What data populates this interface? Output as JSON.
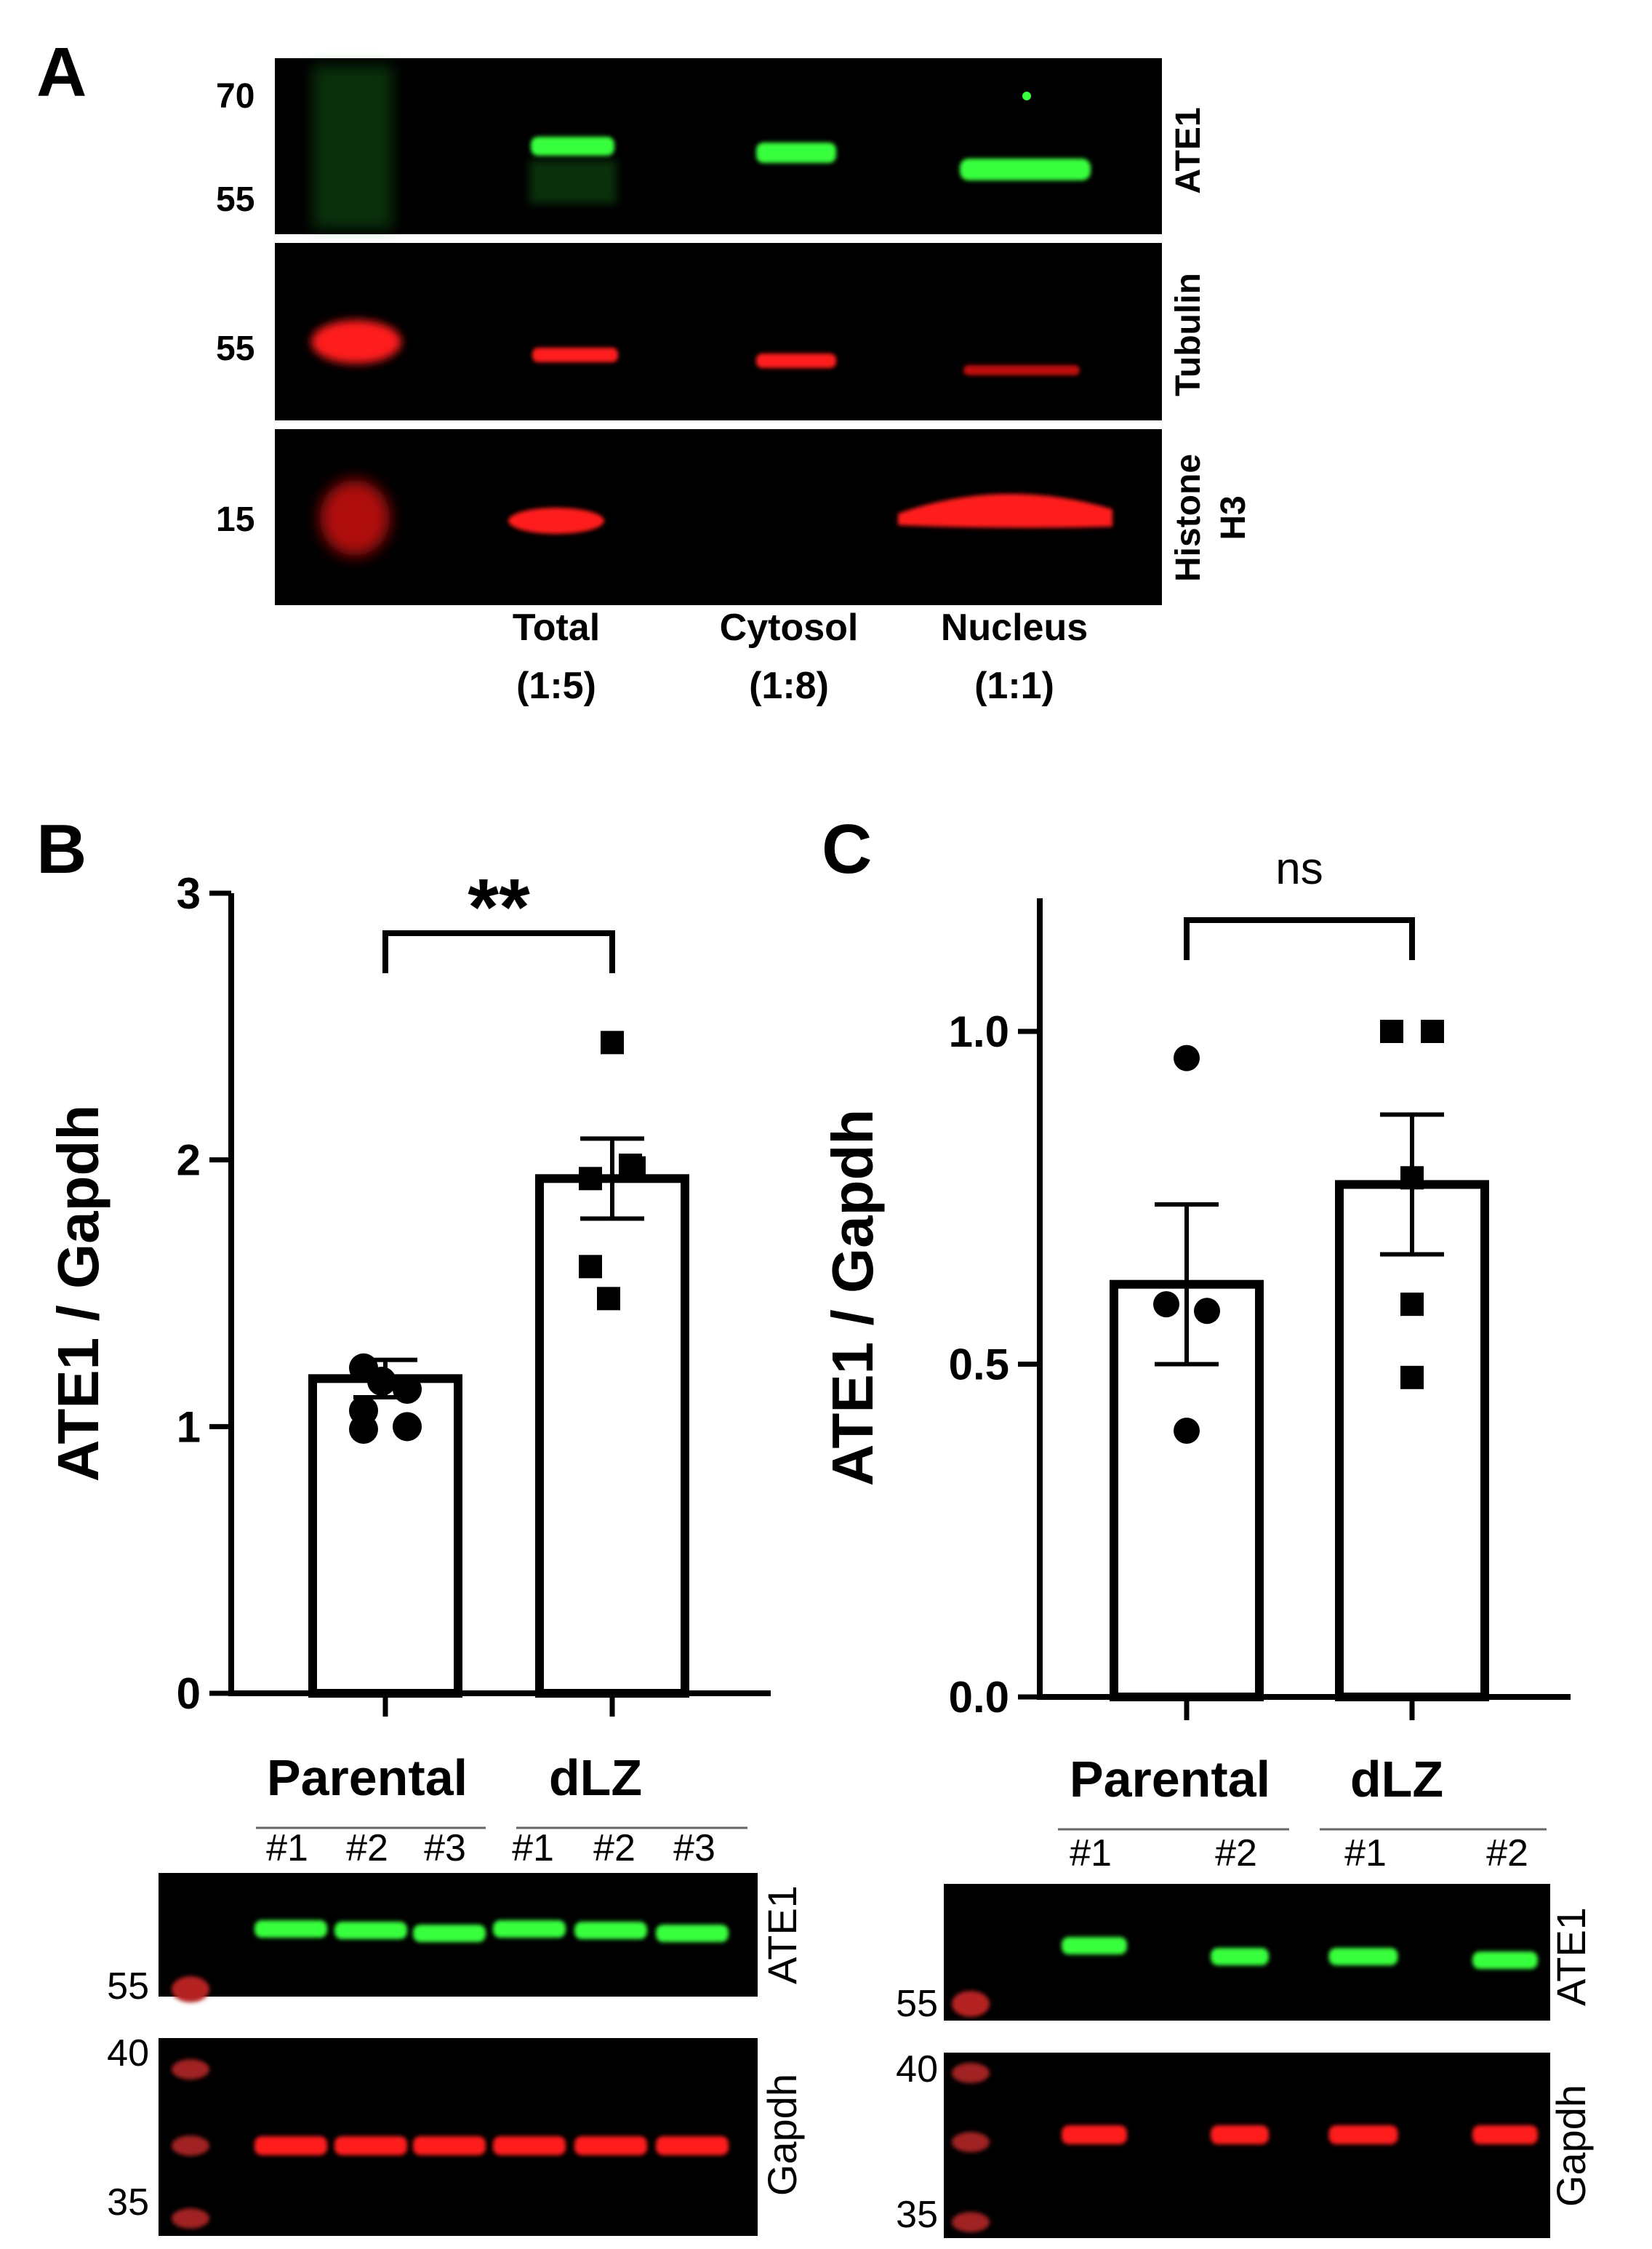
{
  "panelA": {
    "label": "A",
    "rows": [
      {
        "name": "ATE1",
        "color": "#39ff3c",
        "mw_markers": [
          "70",
          "55"
        ],
        "lines": [
          "ATE1"
        ]
      },
      {
        "name": "Tubulin",
        "color": "#ff1a1a",
        "mw_markers": [
          "55"
        ],
        "lines": [
          "Tubulin"
        ]
      },
      {
        "name": "Histone H3",
        "color": "#ff1a1a",
        "mw_markers": [
          "15"
        ],
        "lines": [
          "Histone",
          "H3"
        ]
      }
    ],
    "lanes": [
      {
        "name": "Total",
        "ratio": "(1:5)"
      },
      {
        "name": "Cytosol",
        "ratio": "(1:8)"
      },
      {
        "name": "Nucleus",
        "ratio": "(1:1)"
      }
    ]
  },
  "chart_data": [
    {
      "panel": "B",
      "type": "bar",
      "ylabel": "ATE1 / Gapdh",
      "xlabel": "",
      "ylim": [
        0,
        3
      ],
      "yticks": [
        "0",
        "1",
        "2",
        "3"
      ],
      "categories": [
        "Parental",
        "dLZ"
      ],
      "values": [
        1.18,
        1.93
      ],
      "sem": [
        0.07,
        0.15
      ],
      "points": [
        [
          1.06,
          1.14,
          0.99,
          1.0,
          1.17,
          1.22
        ],
        [
          2.44,
          1.93,
          1.97,
          1.6,
          1.48,
          1.98
        ]
      ],
      "significance": "**",
      "blot": {
        "lanes": [
          "#1",
          "#2",
          "#3",
          "#1",
          "#2",
          "#3"
        ],
        "rows": [
          {
            "name": "ATE1",
            "color": "#39ff3c",
            "markers": [
              "55"
            ]
          },
          {
            "name": "Gapdh",
            "color": "#ff1a1a",
            "markers": [
              "40",
              "35"
            ]
          }
        ]
      }
    },
    {
      "panel": "C",
      "type": "bar",
      "ylabel": "ATE1 / Gapdh",
      "xlabel": "",
      "ylim": [
        0,
        1.2
      ],
      "yticks": [
        "0.0",
        "0.5",
        "1.0"
      ],
      "categories": [
        "Parental",
        "dLZ"
      ],
      "values": [
        0.62,
        0.77
      ],
      "sem": [
        0.12,
        0.105
      ],
      "points": [
        [
          0.96,
          0.59,
          0.58,
          0.4
        ],
        [
          1.0,
          1.0,
          0.78,
          0.59,
          0.48
        ]
      ],
      "significance": "ns",
      "blot": {
        "lanes": [
          "#1",
          "#2",
          "#1",
          "#2"
        ],
        "rows": [
          {
            "name": "ATE1",
            "color": "#39ff3c",
            "markers": [
              "55"
            ]
          },
          {
            "name": "Gapdh",
            "color": "#ff1a1a",
            "markers": [
              "40",
              "35"
            ]
          }
        ]
      }
    }
  ]
}
